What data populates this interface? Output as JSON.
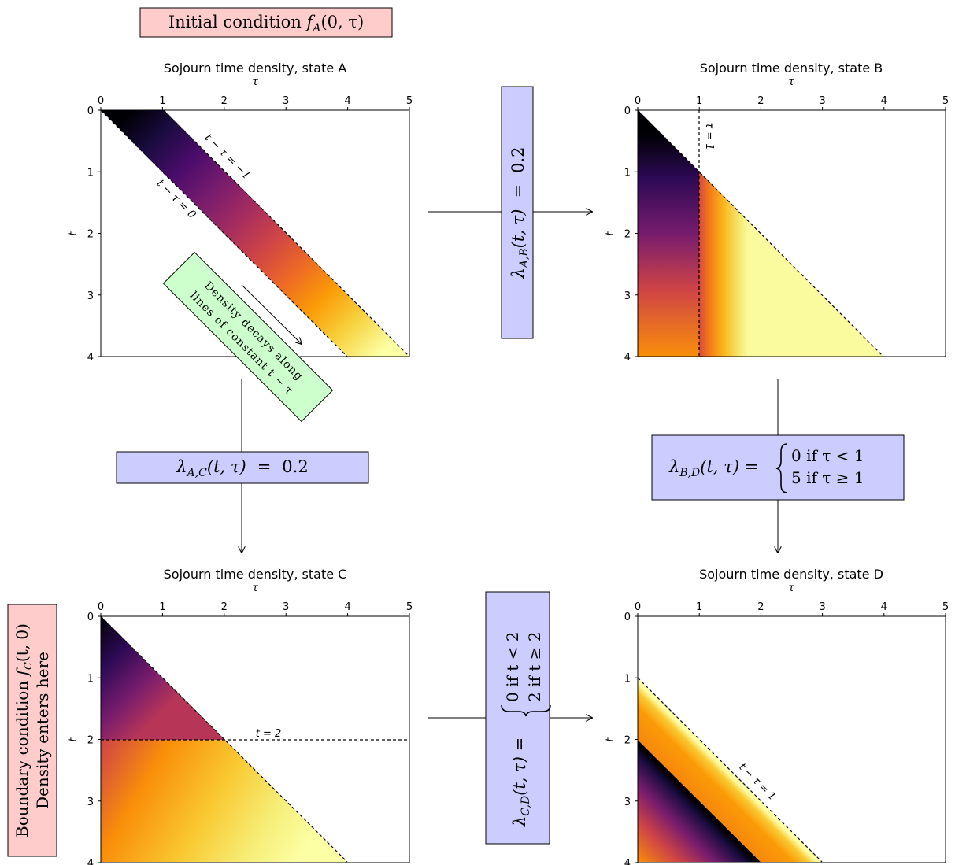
{
  "colors": {
    "box_pink": "#ffcccc",
    "box_blue": "#ccccff",
    "box_green": "#ccffcc",
    "inferno": [
      "#000004",
      "#1b0c41",
      "#4a0c6b",
      "#781c6d",
      "#a52c60",
      "#cf4446",
      "#ed6925",
      "#fb9b06",
      "#f7d13d",
      "#fcffa4"
    ]
  },
  "boxes": {
    "initial": {
      "prefix": "Initial condition ",
      "math": "f",
      "sub": "A",
      "suffix": "(0, τ)"
    },
    "boundary": {
      "line1_prefix": "Boundary condition ",
      "line1_math": "f",
      "line1_sub": "C",
      "line1_suffix": "(t, 0)",
      "line2": "Density enters here"
    },
    "decay_note": {
      "line1": "Density decays along",
      "line2": "lines of constant t − τ"
    },
    "rate_ab": {
      "lambda": "λ",
      "sub": "A,B",
      "args": "(t, τ)",
      "eq": "=",
      "value": "0.2"
    },
    "rate_ac": {
      "lambda": "λ",
      "sub": "A,C",
      "args": "(t, τ)",
      "eq": "=",
      "value": "0.2"
    },
    "rate_bd": {
      "lambda": "λ",
      "sub": "B,D",
      "args": "(t, τ) =",
      "case1": "0 if τ < 1",
      "case2": "5 if τ ≥ 1"
    },
    "rate_cd": {
      "lambda": "λ",
      "sub": "C,D",
      "args": "(t, τ) =",
      "case1": "0 if t < 2",
      "case2": "2 if t ≥ 2"
    }
  },
  "chart_data": [
    {
      "id": "A",
      "type": "heatmap",
      "title": "Sojourn time density, state A",
      "xlabel": "τ",
      "ylabel": "t",
      "xlim": [
        0,
        5
      ],
      "ylim": [
        4,
        0
      ],
      "xticks": [
        "0",
        "1",
        "2",
        "3",
        "4",
        "5"
      ],
      "yticks": [
        "0",
        "1",
        "2",
        "3",
        "4"
      ],
      "annotations": [
        "t − τ = −1",
        "t − τ = 0"
      ]
    },
    {
      "id": "B",
      "type": "heatmap",
      "title": "Sojourn time density, state B",
      "xlabel": "τ",
      "ylabel": "t",
      "xlim": [
        0,
        5
      ],
      "ylim": [
        4,
        0
      ],
      "xticks": [
        "0",
        "1",
        "2",
        "3",
        "4",
        "5"
      ],
      "yticks": [
        "0",
        "1",
        "2",
        "3",
        "4"
      ],
      "annotations": [
        "τ = 1"
      ]
    },
    {
      "id": "C",
      "type": "heatmap",
      "title": "Sojourn time density, state C",
      "xlabel": "τ",
      "ylabel": "t",
      "xlim": [
        0,
        5
      ],
      "ylim": [
        4,
        0
      ],
      "xticks": [
        "0",
        "1",
        "2",
        "3",
        "4",
        "5"
      ],
      "yticks": [
        "0",
        "1",
        "2",
        "3",
        "4"
      ],
      "annotations": [
        "t = 2"
      ]
    },
    {
      "id": "D",
      "type": "heatmap",
      "title": "Sojourn time density, state D",
      "xlabel": "τ",
      "ylabel": "t",
      "xlim": [
        0,
        5
      ],
      "ylim": [
        4,
        0
      ],
      "xticks": [
        "0",
        "1",
        "2",
        "3",
        "4",
        "5"
      ],
      "yticks": [
        "0",
        "1",
        "2",
        "3",
        "4"
      ],
      "annotations": [
        "t − τ = 1"
      ]
    }
  ]
}
